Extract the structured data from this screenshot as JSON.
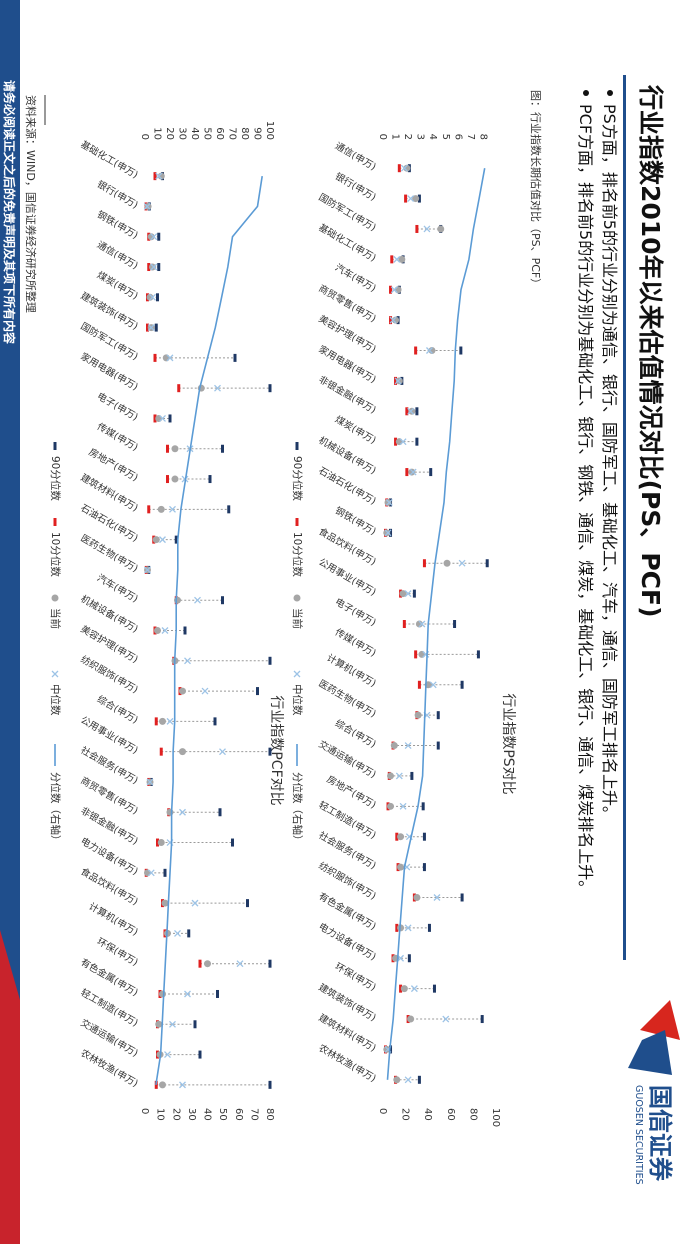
{
  "header": {
    "title": "行业指数2010年以来估值情况对比(PS、PCF)",
    "bullets": [
      "PS方面，排名前5的行业分别为通信、银行、国防军工、基础化工、汽车，通信、国防军工排名上升。",
      "PCF方面，排名前5的行业分别为基础化工、银行、钢铁、通信、煤炭，基础化工、银行、通信、煤炭排名上升。"
    ],
    "logo_cn": "国信证券",
    "logo_en": "GUOSEN SECURITIES"
  },
  "caption": "图：行业指数长期估值对比（PS、PCF）",
  "source": "资料来源：WIND，国信证券经济研究所整理",
  "disclaimer": "请务必阅读正文之后的免责声明及其项下所有内容",
  "chart_data": [
    {
      "type": "range-dot",
      "title": "行业指数PS对比",
      "categories": [
        "通信(申万)",
        "银行(申万)",
        "国防军工(申万)",
        "基础化工(申万)",
        "汽车(申万)",
        "商贸零售(申万)",
        "美容护理(申万)",
        "家用电器(申万)",
        "非银金融(申万)",
        "煤炭(申万)",
        "机械设备(申万)",
        "石油石化(申万)",
        "钢铁(申万)",
        "食品饮料(申万)",
        "公用事业(申万)",
        "电子(申万)",
        "传媒(申万)",
        "计算机(申万)",
        "医药生物(申万)",
        "综合(申万)",
        "交通运输(申万)",
        "房地产(申万)",
        "轻工制造(申万)",
        "社会服务(申万)",
        "纺织服饰(申万)",
        "有色金属(申万)",
        "电力设备(申万)",
        "环保(申万)",
        "建筑装饰(申万)",
        "建筑材料(申万)",
        "农林牧渔(申万)"
      ],
      "series": [
        {
          "name": "90分位数",
          "color": "#1f3864",
          "values": [
            2.1,
            2.9,
            4.6,
            1.6,
            1.3,
            1.2,
            6.2,
            1.5,
            2.7,
            2.7,
            3.8,
            0.6,
            0.6,
            8.3,
            2.5,
            5.7,
            7.6,
            6.3,
            4.4,
            4.4,
            2.3,
            3.2,
            3.3,
            3.3,
            6.3,
            3.7,
            2.1,
            4.1,
            7.9,
            0.6,
            2.9
          ]
        },
        {
          "name": "10分位数",
          "color": "#e02020",
          "values": [
            1.3,
            1.8,
            2.7,
            0.7,
            0.6,
            0.6,
            2.6,
            1.0,
            1.9,
            1.0,
            1.9,
            0.3,
            0.2,
            3.3,
            1.4,
            1.7,
            2.6,
            2.9,
            2.7,
            0.8,
            0.5,
            0.4,
            1.1,
            1.2,
            2.5,
            1.1,
            0.8,
            1.4,
            2.0,
            0.2,
            1.0
          ]
        },
        {
          "name": "当前",
          "color": "#a6a6a6",
          "values": [
            1.9,
            2.6,
            4.6,
            1.5,
            1.2,
            1.0,
            3.9,
            1.3,
            2.3,
            1.3,
            2.3,
            0.4,
            0.3,
            5.1,
            1.6,
            2.9,
            3.1,
            3.6,
            2.8,
            0.9,
            0.6,
            0.6,
            1.4,
            1.4,
            2.7,
            1.4,
            1.0,
            1.7,
            2.2,
            0.3,
            1.1
          ]
        },
        {
          "name": "中位数",
          "color": "#9dc3e6",
          "values": [
            1.7,
            2.2,
            3.5,
            1.1,
            0.9,
            0.8,
            3.7,
            1.2,
            2.2,
            1.6,
            2.4,
            0.5,
            0.4,
            6.3,
            2.0,
            3.1,
            3.4,
            4.0,
            3.5,
            2.0,
            1.3,
            1.6,
            2.1,
            1.9,
            4.3,
            2.0,
            1.4,
            2.5,
            5.0,
            0.4,
            2.0
          ]
        },
        {
          "name": "分位数（右轴）",
          "color": "#5b9bd5",
          "axis": "y2",
          "values": [
            90,
            85,
            80,
            76,
            69,
            66,
            64,
            63,
            61,
            59,
            56,
            54,
            50,
            46,
            43,
            40,
            39,
            38,
            37,
            36,
            35,
            31,
            25,
            19,
            17,
            15,
            13,
            11,
            9,
            6,
            4
          ]
        }
      ],
      "ylim": [
        0,
        9
      ],
      "yticks": [
        0,
        1,
        2,
        3,
        4,
        5,
        6,
        7,
        8
      ],
      "y2lim": [
        0,
        100
      ],
      "y2ticks": [
        0,
        20,
        40,
        60,
        80,
        100
      ]
    },
    {
      "type": "range-dot",
      "title": "行业指数PCF对比",
      "categories": [
        "基础化工(申万)",
        "银行(申万)",
        "钢铁(申万)",
        "通信(申万)",
        "煤炭(申万)",
        "建筑装饰(申万)",
        "国防军工(申万)",
        "家用电器(申万)",
        "电子(申万)",
        "传媒(申万)",
        "房地产(申万)",
        "建筑材料(申万)",
        "石油石化(申万)",
        "医药生物(申万)",
        "汽车(申万)",
        "机械设备(申万)",
        "美容护理(申万)",
        "纺织服饰(申万)",
        "综合(申万)",
        "公用事业(申万)",
        "社会服务(申万)",
        "商贸零售(申万)",
        "非银金融(申万)",
        "电力设备(申万)",
        "食品饮料(申万)",
        "计算机(申万)",
        "环保(申万)",
        "有色金属(申万)",
        "轻工制造(申万)",
        "交通运输(申万)",
        "农林牧渔(申万)"
      ],
      "series": [
        {
          "name": "90分位数",
          "color": "#1f3864",
          "values": [
            14,
            3.5,
            11,
            11,
            10,
            9,
            72,
            100,
            20,
            62,
            52,
            67,
            25,
            3,
            62,
            32,
            100,
            90,
            56,
            100,
            5,
            60,
            70,
            16,
            82,
            35,
            100,
            58,
            40,
            44,
            100
          ]
        },
        {
          "name": "10分位数",
          "color": "#e02020",
          "values": [
            8,
            0.8,
            3,
            3,
            2,
            2,
            8,
            27,
            8,
            18,
            18,
            3,
            7,
            1,
            25,
            8,
            23,
            28,
            9,
            13,
            3,
            19,
            10,
            1,
            14,
            16,
            44,
            12,
            10,
            10,
            9
          ]
        },
        {
          "name": "当前",
          "color": "#a6a6a6",
          "values": [
            13,
            2.5,
            5,
            6,
            4,
            5,
            17,
            45,
            11,
            24,
            24,
            13,
            9,
            2,
            26,
            10,
            24,
            30,
            14,
            30,
            4,
            20,
            13,
            2,
            16,
            18,
            50,
            14,
            11,
            12,
            14
          ]
        },
        {
          "name": "中位数",
          "color": "#9dc3e6",
          "values": [
            11,
            1.8,
            7,
            7,
            6,
            5,
            20,
            58,
            14,
            36,
            32,
            22,
            14,
            2,
            42,
            16,
            34,
            48,
            20,
            62,
            4,
            30,
            20,
            5,
            40,
            26,
            76,
            34,
            22,
            18,
            30
          ]
        },
        {
          "name": "分位数（右轴）",
          "color": "#5b9bd5",
          "axis": "y2",
          "values": [
            75,
            72,
            56,
            53,
            49,
            45,
            40,
            35,
            32,
            29,
            26,
            23,
            21,
            21,
            20,
            20,
            19,
            19,
            19,
            18,
            18,
            17,
            17,
            16,
            15,
            14,
            13,
            12,
            11,
            10,
            7
          ]
        }
      ],
      "ylim": [
        0,
        100
      ],
      "yticks": [
        0,
        10,
        20,
        30,
        40,
        50,
        60,
        70,
        80,
        90,
        100
      ],
      "y2lim": [
        0,
        80
      ],
      "y2ticks": [
        0,
        10,
        20,
        30,
        40,
        50,
        60,
        70,
        80
      ]
    }
  ]
}
